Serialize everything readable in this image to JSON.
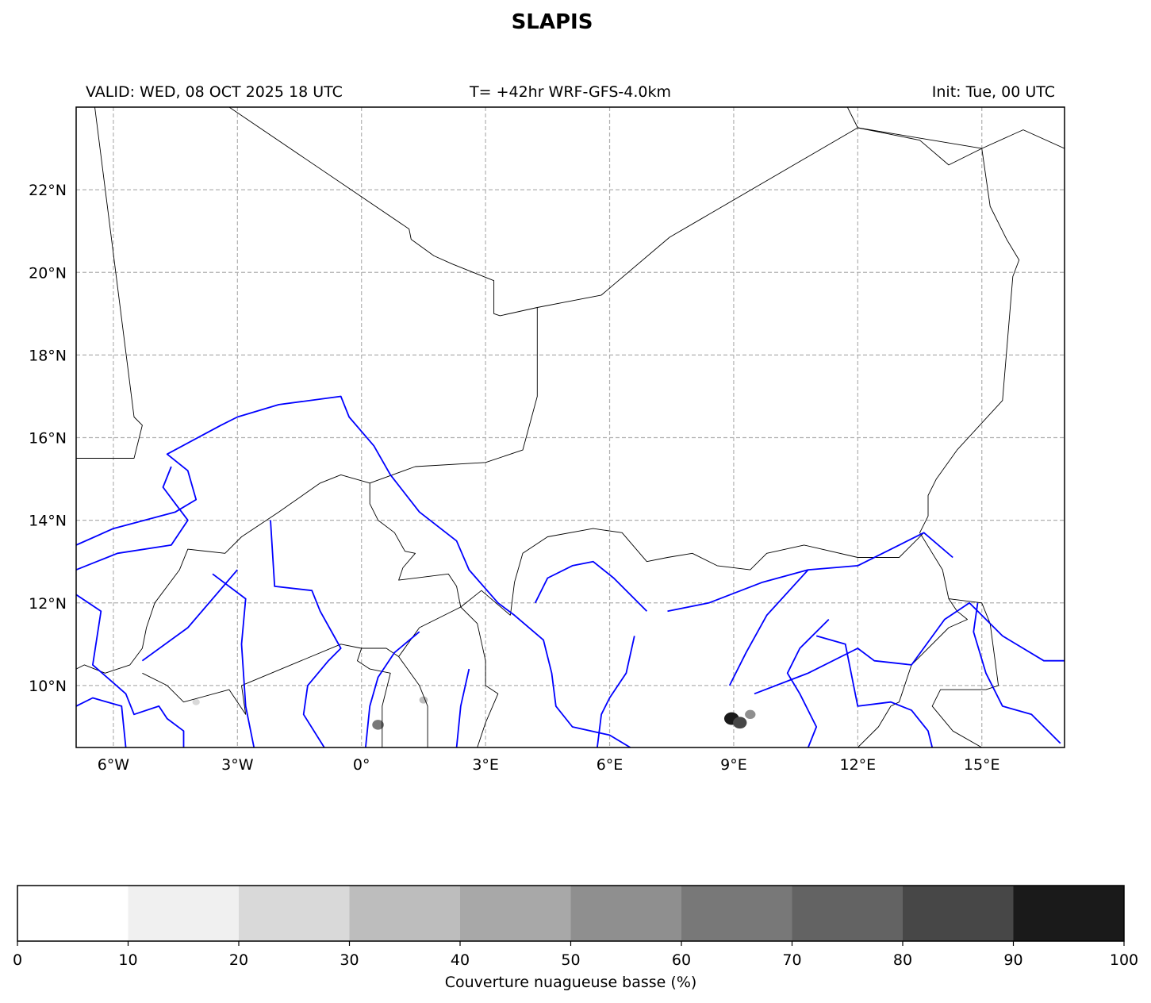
{
  "title": "SLAPIS",
  "header": {
    "valid": "VALID: WED, 08 OCT 2025 18 UTC",
    "lead": "T= +42hr WRF-GFS-4.0km",
    "init": "Init: Tue, 00 UTC"
  },
  "map": {
    "lon_range": [
      -6.9,
      17.0
    ],
    "lat_range": [
      8.5,
      24.0
    ],
    "x_ticks": [
      {
        "lon": -6,
        "label": "6°W"
      },
      {
        "lon": -3,
        "label": "3°W"
      },
      {
        "lon": 0,
        "label": "0°"
      },
      {
        "lon": 3,
        "label": "3°E"
      },
      {
        "lon": 6,
        "label": "6°E"
      },
      {
        "lon": 9,
        "label": "9°E"
      },
      {
        "lon": 12,
        "label": "12°E"
      },
      {
        "lon": 15,
        "label": "15°E"
      }
    ],
    "y_ticks": [
      {
        "lat": 10,
        "label": "10°N"
      },
      {
        "lat": 12,
        "label": "12°N"
      },
      {
        "lat": 14,
        "label": "14°N"
      },
      {
        "lat": 16,
        "label": "16°N"
      },
      {
        "lat": 18,
        "label": "18°N"
      },
      {
        "lat": 20,
        "label": "20°N"
      },
      {
        "lat": 22,
        "label": "22°N"
      }
    ],
    "gridlines": true,
    "colors": {
      "borders": "#000000",
      "rivers": "#0000ff",
      "grid": "#b0b0b0"
    },
    "borders": [
      [
        [
          -6.45,
          24.0
        ],
        [
          -5.5,
          16.5
        ],
        [
          -5.3,
          16.3
        ],
        [
          -5.5,
          15.5
        ],
        [
          -6.9,
          15.5
        ]
      ],
      [
        [
          -3.2,
          24.0
        ],
        [
          1.15,
          21.05
        ],
        [
          1.2,
          20.8
        ],
        [
          1.75,
          20.4
        ],
        [
          2.2,
          20.2
        ],
        [
          3.2,
          19.8
        ],
        [
          3.2,
          19.0
        ],
        [
          3.35,
          18.95
        ],
        [
          4.25,
          19.15
        ],
        [
          5.8,
          19.45
        ],
        [
          7.45,
          20.85
        ],
        [
          12.0,
          23.5
        ],
        [
          15.0,
          23.0
        ],
        [
          16.0,
          23.45
        ],
        [
          17.0,
          23.0
        ]
      ],
      [
        [
          11.75,
          24.0
        ],
        [
          12.0,
          23.5
        ],
        [
          13.5,
          23.2
        ],
        [
          14.2,
          22.6
        ],
        [
          15.0,
          23.0
        ]
      ],
      [
        [
          15.0,
          23.0
        ],
        [
          15.2,
          21.6
        ],
        [
          15.6,
          20.8
        ],
        [
          15.9,
          20.3
        ],
        [
          15.75,
          19.9
        ],
        [
          15.5,
          16.9
        ],
        [
          14.4,
          15.7
        ],
        [
          13.9,
          15.0
        ],
        [
          13.7,
          14.6
        ],
        [
          13.7,
          14.1
        ],
        [
          13.5,
          13.7
        ],
        [
          14.05,
          12.8
        ],
        [
          14.2,
          12.1
        ],
        [
          14.4,
          11.8
        ],
        [
          14.65,
          11.6
        ],
        [
          14.2,
          11.4
        ],
        [
          13.3,
          10.5
        ],
        [
          13.0,
          9.6
        ],
        [
          12.8,
          9.5
        ],
        [
          12.5,
          9.0
        ],
        [
          12.0,
          8.5
        ]
      ],
      [
        [
          4.25,
          19.15
        ],
        [
          4.25,
          17.0
        ],
        [
          3.9,
          15.7
        ],
        [
          3.0,
          15.4
        ],
        [
          1.3,
          15.3
        ],
        [
          0.2,
          14.9
        ],
        [
          -0.5,
          15.1
        ],
        [
          -1.0,
          14.9
        ],
        [
          -2.0,
          14.2
        ],
        [
          -2.9,
          13.6
        ],
        [
          -3.3,
          13.2
        ],
        [
          -4.2,
          13.3
        ],
        [
          -4.4,
          12.8
        ],
        [
          -5.0,
          12.0
        ],
        [
          -5.2,
          11.4
        ],
        [
          -5.3,
          10.9
        ],
        [
          -5.6,
          10.5
        ],
        [
          -6.2,
          10.3
        ],
        [
          -6.7,
          10.5
        ],
        [
          -6.9,
          10.4
        ]
      ],
      [
        [
          0.2,
          14.9
        ],
        [
          0.2,
          14.4
        ],
        [
          0.4,
          14.0
        ],
        [
          0.8,
          13.7
        ],
        [
          1.05,
          13.25
        ],
        [
          1.3,
          13.2
        ],
        [
          1.0,
          12.85
        ],
        [
          0.9,
          12.55
        ],
        [
          2.1,
          12.7
        ],
        [
          2.3,
          12.4
        ],
        [
          2.4,
          11.9
        ],
        [
          2.9,
          12.3
        ],
        [
          3.6,
          11.7
        ]
      ],
      [
        [
          2.4,
          11.9
        ],
        [
          2.8,
          11.5
        ],
        [
          3.0,
          10.6
        ],
        [
          3.0,
          10.0
        ],
        [
          3.3,
          9.8
        ],
        [
          3.0,
          9.1
        ],
        [
          2.8,
          8.5
        ]
      ],
      [
        [
          3.6,
          11.7
        ],
        [
          3.7,
          12.5
        ],
        [
          3.9,
          13.2
        ],
        [
          4.5,
          13.6
        ],
        [
          5.6,
          13.8
        ],
        [
          6.3,
          13.7
        ],
        [
          6.9,
          13.0
        ],
        [
          7.4,
          13.1
        ],
        [
          8.0,
          13.2
        ],
        [
          8.6,
          12.9
        ],
        [
          9.4,
          12.8
        ],
        [
          9.8,
          13.2
        ],
        [
          10.7,
          13.4
        ],
        [
          12.0,
          13.1
        ],
        [
          13.0,
          13.1
        ],
        [
          13.6,
          13.7
        ]
      ],
      [
        [
          -2.9,
          10.0
        ],
        [
          -0.5,
          11.0
        ],
        [
          0.0,
          10.9
        ],
        [
          0.6,
          10.9
        ],
        [
          0.9,
          10.7
        ],
        [
          1.4,
          11.4
        ],
        [
          2.4,
          11.9
        ]
      ],
      [
        [
          -2.9,
          10.0
        ],
        [
          -2.8,
          9.3
        ],
        [
          -3.2,
          9.9
        ],
        [
          -4.3,
          9.6
        ],
        [
          -4.7,
          10.0
        ],
        [
          -5.3,
          10.3
        ]
      ],
      [
        [
          0.9,
          10.7
        ],
        [
          1.4,
          10.0
        ],
        [
          1.6,
          9.5
        ],
        [
          1.6,
          8.5
        ]
      ],
      [
        [
          0.0,
          10.9
        ],
        [
          -0.1,
          10.6
        ],
        [
          0.2,
          10.4
        ],
        [
          0.7,
          10.3
        ],
        [
          0.5,
          9.5
        ],
        [
          0.5,
          8.5
        ]
      ],
      [
        [
          14.2,
          12.1
        ],
        [
          15.0,
          12.0
        ],
        [
          15.2,
          11.5
        ],
        [
          15.4,
          10.0
        ],
        [
          15.1,
          9.9
        ],
        [
          14.0,
          9.9
        ],
        [
          13.8,
          9.5
        ],
        [
          14.3,
          8.9
        ],
        [
          15.0,
          8.5
        ]
      ]
    ],
    "rivers": [
      [
        [
          -6.9,
          13.4
        ],
        [
          -6.0,
          13.8
        ],
        [
          -4.5,
          14.2
        ],
        [
          -4.0,
          14.5
        ],
        [
          -4.2,
          15.2
        ],
        [
          -4.7,
          15.6
        ],
        [
          -3.4,
          16.3
        ],
        [
          -3.0,
          16.5
        ],
        [
          -2.0,
          16.8
        ],
        [
          -0.5,
          17.0
        ],
        [
          -0.3,
          16.5
        ],
        [
          0.3,
          15.8
        ],
        [
          0.7,
          15.1
        ],
        [
          1.4,
          14.2
        ],
        [
          2.3,
          13.5
        ],
        [
          2.6,
          12.8
        ],
        [
          3.3,
          12.0
        ],
        [
          3.7,
          11.7
        ],
        [
          4.4,
          11.1
        ],
        [
          4.6,
          10.3
        ],
        [
          4.7,
          9.5
        ],
        [
          5.1,
          9.0
        ],
        [
          6.0,
          8.8
        ],
        [
          6.5,
          8.5
        ]
      ],
      [
        [
          -6.9,
          12.8
        ],
        [
          -5.9,
          13.2
        ],
        [
          -4.6,
          13.4
        ],
        [
          -4.2,
          14.0
        ],
        [
          -4.5,
          14.4
        ],
        [
          -4.8,
          14.8
        ],
        [
          -4.6,
          15.3
        ]
      ],
      [
        [
          -6.9,
          12.2
        ],
        [
          -6.3,
          11.8
        ],
        [
          -6.5,
          10.5
        ],
        [
          -5.7,
          9.8
        ],
        [
          -5.5,
          9.3
        ],
        [
          -4.9,
          9.5
        ],
        [
          -4.7,
          9.2
        ],
        [
          -4.3,
          8.9
        ],
        [
          -4.3,
          8.5
        ]
      ],
      [
        [
          -6.9,
          9.5
        ],
        [
          -6.5,
          9.7
        ],
        [
          -5.8,
          9.5
        ],
        [
          -5.7,
          8.5
        ]
      ],
      [
        [
          -3.6,
          12.7
        ],
        [
          -2.8,
          12.1
        ],
        [
          -2.9,
          11.0
        ],
        [
          -2.8,
          9.5
        ],
        [
          -2.6,
          8.5
        ]
      ],
      [
        [
          -2.2,
          14.0
        ],
        [
          -2.1,
          12.4
        ],
        [
          -1.2,
          12.3
        ],
        [
          -1.0,
          11.8
        ],
        [
          -0.5,
          10.9
        ],
        [
          -0.8,
          10.6
        ],
        [
          -1.3,
          10.0
        ],
        [
          -1.4,
          9.3
        ],
        [
          -0.9,
          8.5
        ]
      ],
      [
        [
          -3.0,
          12.8
        ],
        [
          -4.2,
          11.4
        ],
        [
          -5.3,
          10.6
        ]
      ],
      [
        [
          1.4,
          11.3
        ],
        [
          0.8,
          10.8
        ],
        [
          0.4,
          10.2
        ],
        [
          0.2,
          9.5
        ],
        [
          0.1,
          8.5
        ]
      ],
      [
        [
          2.6,
          10.4
        ],
        [
          2.4,
          9.5
        ],
        [
          2.3,
          8.5
        ]
      ],
      [
        [
          4.2,
          12.0
        ],
        [
          4.5,
          12.6
        ],
        [
          5.1,
          12.9
        ],
        [
          5.6,
          13.0
        ],
        [
          6.1,
          12.6
        ],
        [
          6.9,
          11.8
        ]
      ],
      [
        [
          6.6,
          11.2
        ],
        [
          6.4,
          10.3
        ],
        [
          6.0,
          9.7
        ],
        [
          5.8,
          9.3
        ],
        [
          5.7,
          8.5
        ]
      ],
      [
        [
          7.4,
          11.8
        ],
        [
          8.4,
          12.0
        ],
        [
          9.7,
          12.5
        ],
        [
          10.8,
          12.8
        ],
        [
          12.0,
          12.9
        ],
        [
          13.0,
          13.4
        ],
        [
          13.6,
          13.7
        ],
        [
          14.3,
          13.1
        ]
      ],
      [
        [
          10.8,
          12.8
        ],
        [
          9.8,
          11.7
        ],
        [
          9.3,
          10.8
        ],
        [
          8.9,
          10.0
        ]
      ],
      [
        [
          9.5,
          9.8
        ],
        [
          10.8,
          10.3
        ],
        [
          12.0,
          10.9
        ],
        [
          12.4,
          10.6
        ],
        [
          13.3,
          10.5
        ],
        [
          14.1,
          11.6
        ],
        [
          14.7,
          12.0
        ],
        [
          15.5,
          11.2
        ],
        [
          16.5,
          10.6
        ],
        [
          17.0,
          10.6
        ]
      ],
      [
        [
          11.3,
          11.6
        ],
        [
          10.6,
          10.9
        ],
        [
          10.3,
          10.3
        ],
        [
          10.6,
          9.8
        ],
        [
          11.0,
          9.0
        ],
        [
          10.8,
          8.5
        ]
      ],
      [
        [
          11.0,
          11.2
        ],
        [
          11.7,
          11.0
        ],
        [
          12.0,
          9.5
        ],
        [
          12.8,
          9.6
        ],
        [
          13.3,
          9.4
        ],
        [
          13.7,
          8.9
        ],
        [
          13.8,
          8.5
        ]
      ],
      [
        [
          14.9,
          12.0
        ],
        [
          14.8,
          11.3
        ],
        [
          15.1,
          10.3
        ],
        [
          15.5,
          9.5
        ],
        [
          16.2,
          9.3
        ],
        [
          16.9,
          8.6
        ]
      ]
    ],
    "cloud_spots": [
      {
        "lon": 8.95,
        "lat": 9.2,
        "pct": 95
      },
      {
        "lon": 9.15,
        "lat": 9.1,
        "pct": 85
      },
      {
        "lon": 9.4,
        "lat": 9.3,
        "pct": 55
      },
      {
        "lon": 0.4,
        "lat": 9.05,
        "pct": 65
      },
      {
        "lon": 1.5,
        "lat": 9.65,
        "pct": 35
      },
      {
        "lon": -4.0,
        "lat": 9.6,
        "pct": 25
      }
    ]
  },
  "colorbar": {
    "label": "Couverture nuagueuse basse (%)",
    "ticks": [
      "0",
      "10",
      "20",
      "30",
      "40",
      "50",
      "60",
      "70",
      "80",
      "90",
      "100"
    ],
    "colors": [
      "#ffffff",
      "#f0f0f0",
      "#d9d9d9",
      "#bdbdbd",
      "#a8a8a8",
      "#8f8f8f",
      "#787878",
      "#636363",
      "#474747",
      "#1a1a1a"
    ]
  }
}
